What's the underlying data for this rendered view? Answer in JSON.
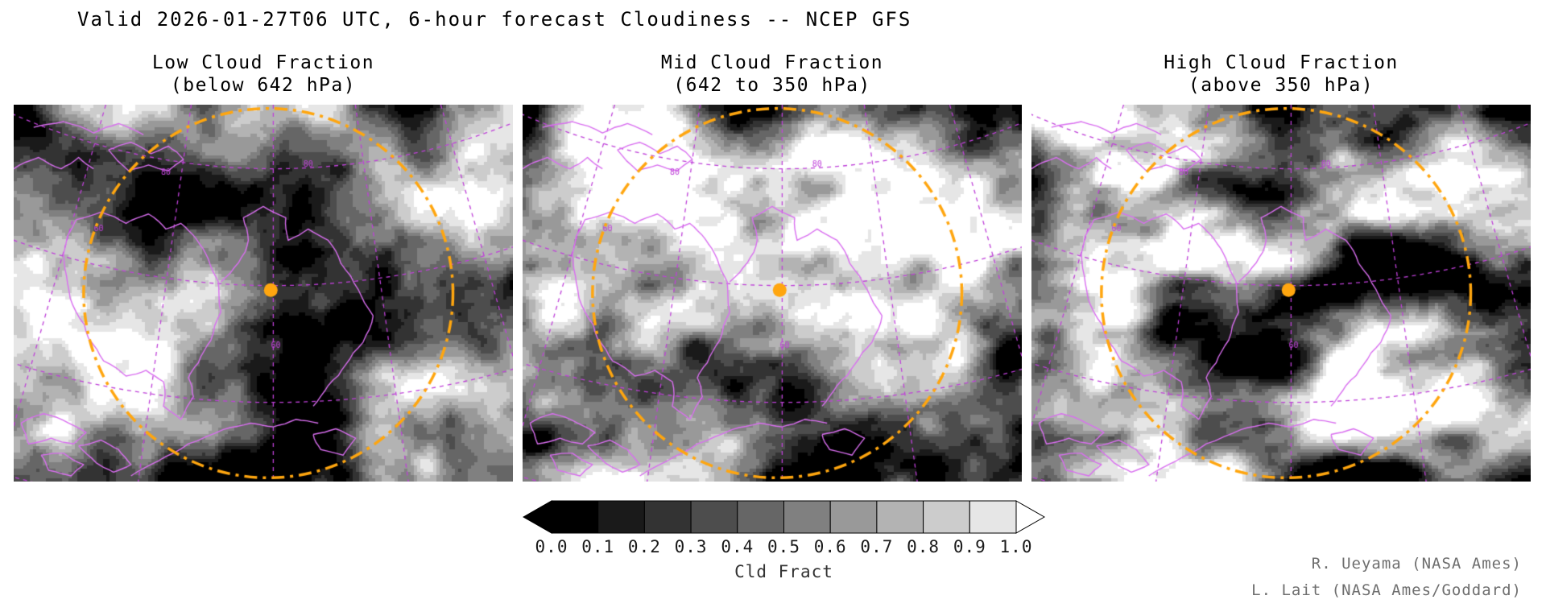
{
  "title": "Valid 2026-01-27T06 UTC, 6-hour forecast Cloudiness -- NCEP GFS",
  "panels": [
    {
      "title": "Low Cloud Fraction",
      "subtitle": "(below 642 hPa)"
    },
    {
      "title": "Mid Cloud Fraction",
      "subtitle": "(642 to 350 hPa)"
    },
    {
      "title": "High Cloud Fraction",
      "subtitle": "(above 350 hPa)"
    }
  ],
  "colorbar": {
    "ticks": [
      "0.0",
      "0.1",
      "0.2",
      "0.3",
      "0.4",
      "0.5",
      "0.6",
      "0.7",
      "0.8",
      "0.9",
      "1.0"
    ],
    "caption": "Cld Fract",
    "ramp": "black-to-white, 10 discrete steps with arrow end caps"
  },
  "graticule_labels": [
    "60",
    "70",
    "80"
  ],
  "credits": [
    "R. Ueyama (NASA Ames)",
    "L. Lait (NASA Ames/Goddard)"
  ],
  "colors": {
    "background": "#ffffff",
    "title_text": "#000000",
    "coastline": "#d96ef0",
    "graticule": "#bf40d9",
    "range_ring": "#ffa60f",
    "site_marker": "#ffa60f",
    "tick_text": "#1a1a1a",
    "caption_text": "#333333",
    "credits_text": "#6e6e6e"
  }
}
